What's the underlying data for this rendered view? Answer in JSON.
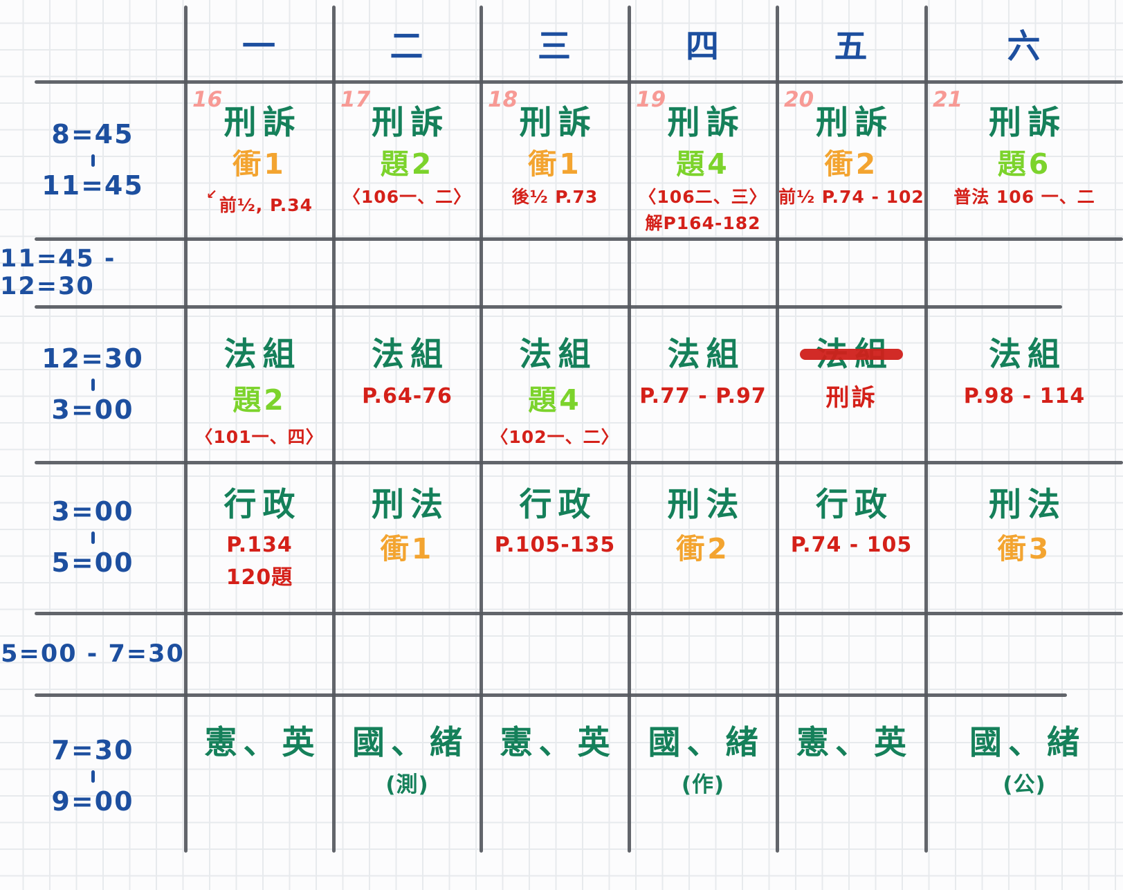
{
  "colors": {
    "blue": "#1d4f9f",
    "green": "#15805a",
    "lightGreen": "#7cd32c",
    "orange": "#f3a430",
    "red": "#d42019",
    "pink": "#f79a95",
    "gridLine": "#55585e"
  },
  "days": [
    "一",
    "二",
    "三",
    "四",
    "五",
    "六"
  ],
  "dates": [
    "16",
    "17",
    "18",
    "19",
    "20",
    "21"
  ],
  "rows": [
    {
      "time_lines": [
        "8=45",
        "11=45"
      ],
      "time_style": "stacked",
      "cells": [
        {
          "lines": [
            {
              "t": "刑訴",
              "c": "green",
              "s": "subject"
            },
            {
              "t": "衝1",
              "c": "orange",
              "s": "mid"
            },
            {
              "t": "前½, P.34",
              "c": "red",
              "s": "note",
              "mark": "↙"
            }
          ]
        },
        {
          "lines": [
            {
              "t": "刑訴",
              "c": "green",
              "s": "subject"
            },
            {
              "t": "題2",
              "c": "lightGreen",
              "s": "mid"
            },
            {
              "t": "〈106一、二〉",
              "c": "red",
              "s": "note"
            }
          ]
        },
        {
          "lines": [
            {
              "t": "刑訴",
              "c": "green",
              "s": "subject"
            },
            {
              "t": "衝1",
              "c": "orange",
              "s": "mid"
            },
            {
              "t": "後½ P.73",
              "c": "red",
              "s": "note"
            }
          ]
        },
        {
          "lines": [
            {
              "t": "刑訴",
              "c": "green",
              "s": "subject"
            },
            {
              "t": "題4",
              "c": "lightGreen",
              "s": "mid"
            },
            {
              "t": "〈106二、三〉",
              "c": "red",
              "s": "note"
            },
            {
              "t": "解P164-182",
              "c": "red",
              "s": "note"
            }
          ]
        },
        {
          "lines": [
            {
              "t": "刑訴",
              "c": "green",
              "s": "subject"
            },
            {
              "t": "衝2",
              "c": "orange",
              "s": "mid"
            },
            {
              "t": "前½ P.74 - 102",
              "c": "red",
              "s": "note"
            }
          ]
        },
        {
          "lines": [
            {
              "t": "刑訴",
              "c": "green",
              "s": "subject"
            },
            {
              "t": "題6",
              "c": "lightGreen",
              "s": "mid"
            },
            {
              "t": "普法 106 一、二",
              "c": "red",
              "s": "note"
            }
          ]
        }
      ]
    },
    {
      "time_lines": [
        "11=45 - 12=30"
      ],
      "time_style": "single",
      "cells": [
        {},
        {},
        {},
        {},
        {},
        {}
      ]
    },
    {
      "time_lines": [
        "12=30",
        "3=00"
      ],
      "time_style": "stacked",
      "cells": [
        {
          "lines": [
            {
              "t": "法組",
              "c": "green",
              "s": "subject"
            },
            {
              "t": "題2",
              "c": "lightGreen",
              "s": "mid"
            },
            {
              "t": "〈101一、四〉",
              "c": "red",
              "s": "note"
            }
          ]
        },
        {
          "lines": [
            {
              "t": "法組",
              "c": "green",
              "s": "subject"
            },
            {
              "t": "P.64-76",
              "c": "red",
              "s": "note2"
            }
          ]
        },
        {
          "lines": [
            {
              "t": "法組",
              "c": "green",
              "s": "subject"
            },
            {
              "t": "題4",
              "c": "lightGreen",
              "s": "mid"
            },
            {
              "t": "〈102一、二〉",
              "c": "red",
              "s": "note"
            }
          ]
        },
        {
          "lines": [
            {
              "t": "法組",
              "c": "green",
              "s": "subject"
            },
            {
              "t": "P.77 - P.97",
              "c": "red",
              "s": "note2"
            }
          ]
        },
        {
          "lines": [
            {
              "t": "法組",
              "c": "green",
              "s": "subject",
              "strike": true
            },
            {
              "t": "刑訴",
              "c": "red",
              "s": "mid2"
            }
          ]
        },
        {
          "lines": [
            {
              "t": "法組",
              "c": "green",
              "s": "subject"
            },
            {
              "t": "P.98 - 114",
              "c": "red",
              "s": "note2"
            }
          ]
        }
      ]
    },
    {
      "time_lines": [
        "3=00",
        "5=00"
      ],
      "time_style": "stacked",
      "cells": [
        {
          "lines": [
            {
              "t": "行政",
              "c": "green",
              "s": "subject"
            },
            {
              "t": "P.134",
              "c": "red",
              "s": "note2"
            },
            {
              "t": "120題",
              "c": "red",
              "s": "note2"
            }
          ]
        },
        {
          "lines": [
            {
              "t": "刑法",
              "c": "green",
              "s": "subject"
            },
            {
              "t": "衝1",
              "c": "orange",
              "s": "mid"
            }
          ]
        },
        {
          "lines": [
            {
              "t": "行政",
              "c": "green",
              "s": "subject"
            },
            {
              "t": "P.105-135",
              "c": "red",
              "s": "note2"
            }
          ]
        },
        {
          "lines": [
            {
              "t": "刑法",
              "c": "green",
              "s": "subject"
            },
            {
              "t": "衝2",
              "c": "orange",
              "s": "mid"
            }
          ]
        },
        {
          "lines": [
            {
              "t": "行政",
              "c": "green",
              "s": "subject"
            },
            {
              "t": "P.74 - 105",
              "c": "red",
              "s": "note2"
            }
          ]
        },
        {
          "lines": [
            {
              "t": "刑法",
              "c": "green",
              "s": "subject"
            },
            {
              "t": "衝3",
              "c": "orange",
              "s": "mid"
            }
          ]
        }
      ]
    },
    {
      "time_lines": [
        "5=00 - 7=30"
      ],
      "time_style": "single",
      "cells": [
        {},
        {},
        {},
        {},
        {},
        {}
      ]
    },
    {
      "time_lines": [
        "7=30",
        "9=00"
      ],
      "time_style": "stacked",
      "cells": [
        {
          "lines": [
            {
              "t": "憲、英",
              "c": "green",
              "s": "subject"
            }
          ]
        },
        {
          "lines": [
            {
              "t": "國、緒",
              "c": "green",
              "s": "subject"
            },
            {
              "t": "(測)",
              "c": "green",
              "s": "paren"
            }
          ]
        },
        {
          "lines": [
            {
              "t": "憲、英",
              "c": "green",
              "s": "subject"
            }
          ]
        },
        {
          "lines": [
            {
              "t": "國、緒",
              "c": "green",
              "s": "subject"
            },
            {
              "t": "(作)",
              "c": "green",
              "s": "paren"
            }
          ]
        },
        {
          "lines": [
            {
              "t": "憲、英",
              "c": "green",
              "s": "subject"
            }
          ]
        },
        {
          "lines": [
            {
              "t": "國、緒",
              "c": "green",
              "s": "subject"
            },
            {
              "t": "(公)",
              "c": "green",
              "s": "paren"
            }
          ]
        }
      ]
    }
  ]
}
